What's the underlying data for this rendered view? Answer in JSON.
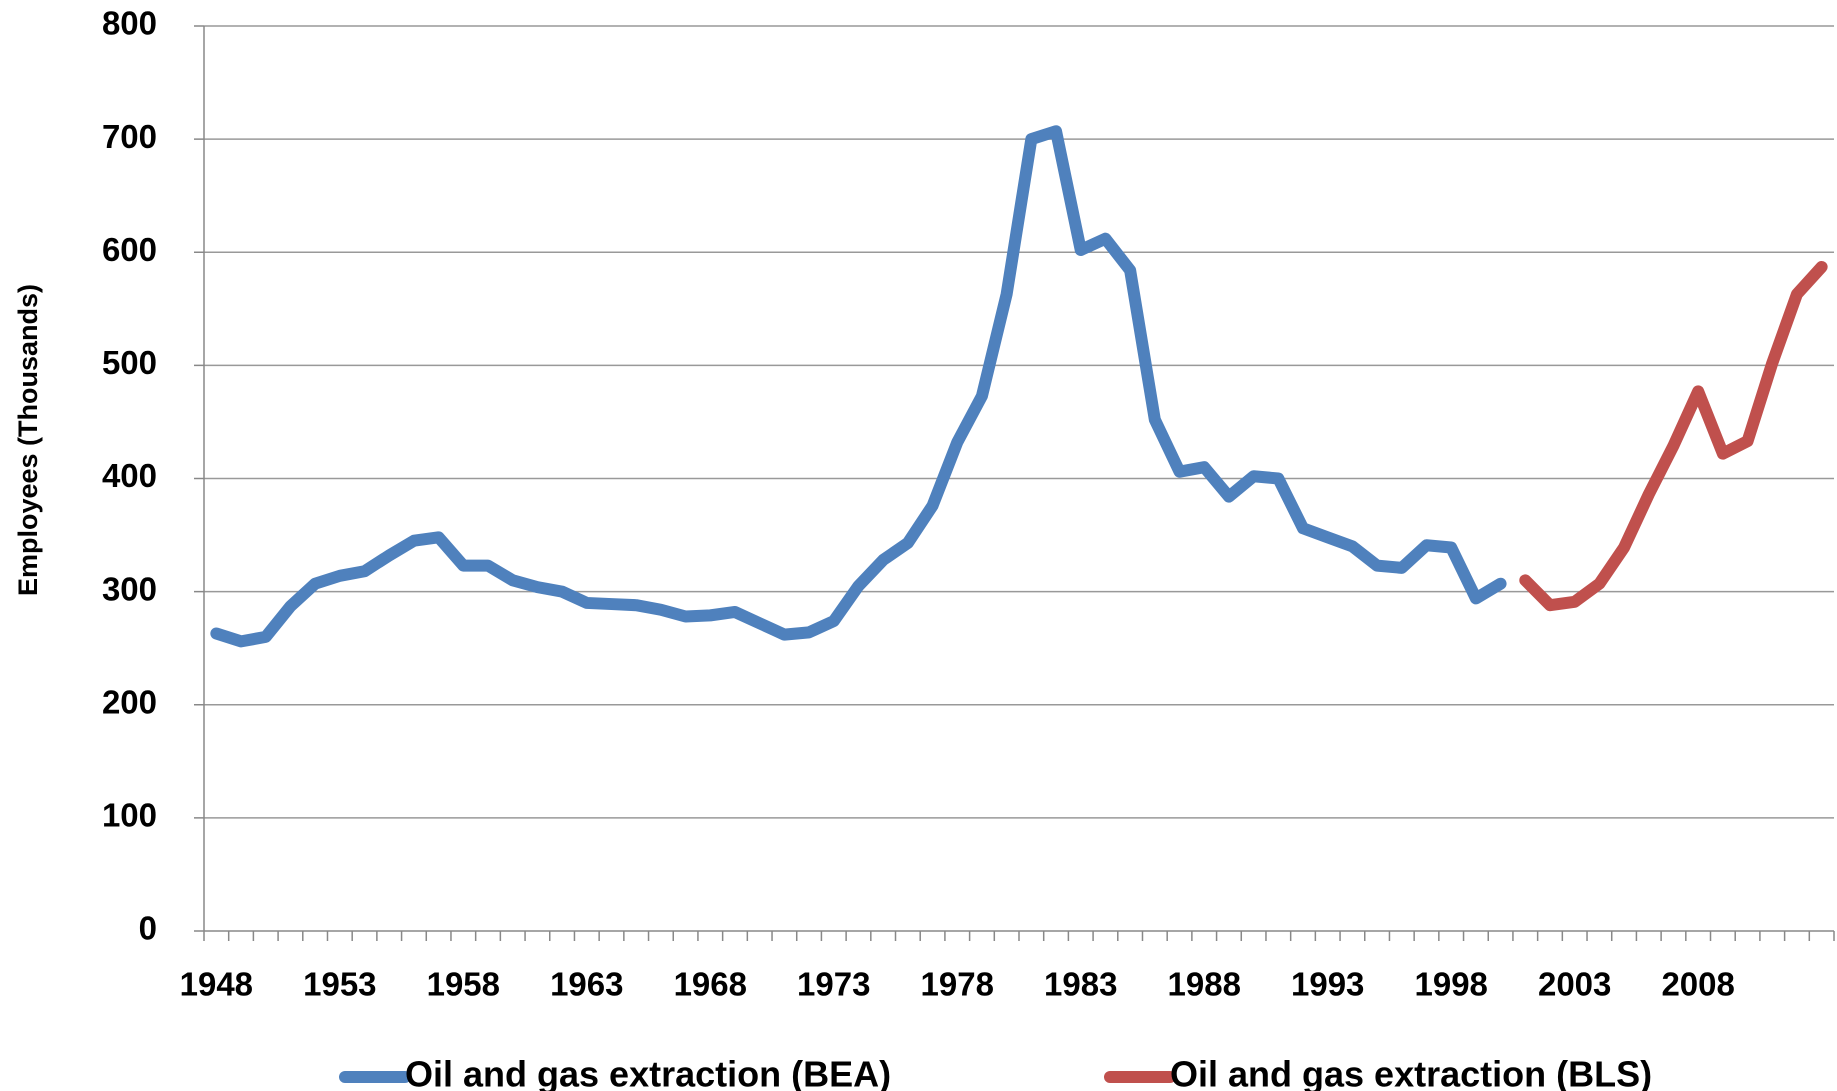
{
  "chart_data": {
    "type": "line",
    "y_label": "Employees (Thousands)",
    "categories": [
      "1948",
      null,
      null,
      null,
      null,
      "1953",
      null,
      null,
      null,
      null,
      "1958",
      null,
      null,
      null,
      null,
      "1963",
      null,
      null,
      null,
      null,
      "1968",
      null,
      null,
      null,
      null,
      "1973",
      null,
      null,
      null,
      null,
      "1978",
      null,
      null,
      null,
      null,
      "1983",
      null,
      null,
      null,
      null,
      "1988",
      null,
      null,
      null,
      null,
      "1993",
      null,
      null,
      null,
      null,
      "1998",
      null,
      null,
      null,
      null,
      "2003",
      null,
      null,
      null,
      null,
      "2008",
      null,
      null,
      null,
      null,
      null
    ],
    "series": [
      {
        "name": "Oil and gas extraction (BEA)",
        "color": "#4f81bd",
        "values": [
          263,
          256,
          260,
          287,
          307,
          314,
          318,
          332,
          345,
          348,
          323,
          323,
          310,
          304,
          300,
          290,
          289,
          288,
          284,
          278,
          279,
          282,
          272,
          262,
          264,
          274,
          305,
          328,
          343,
          376,
          432,
          473,
          563,
          700,
          707,
          602,
          612,
          584,
          452,
          406,
          410,
          384,
          402,
          400,
          356,
          348,
          340,
          323,
          321,
          341,
          339,
          294,
          307,
          null,
          null,
          null,
          null,
          null,
          null,
          null,
          null,
          null,
          null,
          null,
          null,
          null
        ]
      },
      {
        "name": "Oil and gas extraction (BLS)",
        "color": "#c0504d",
        "values": [
          null,
          null,
          null,
          null,
          null,
          null,
          null,
          null,
          null,
          null,
          null,
          null,
          null,
          null,
          null,
          null,
          null,
          null,
          null,
          null,
          null,
          null,
          null,
          null,
          null,
          null,
          null,
          null,
          null,
          null,
          null,
          null,
          null,
          null,
          null,
          null,
          null,
          null,
          null,
          null,
          null,
          null,
          null,
          null,
          null,
          null,
          null,
          null,
          null,
          null,
          null,
          null,
          null,
          310,
          288,
          291,
          307,
          339,
          386,
          429,
          477,
          422,
          433,
          502,
          563,
          587
        ]
      }
    ],
    "ylim": [
      0,
      800
    ],
    "yticks": [
      0,
      100,
      200,
      300,
      400,
      500,
      600,
      700,
      800
    ],
    "grid": true,
    "legend": "bottom"
  }
}
